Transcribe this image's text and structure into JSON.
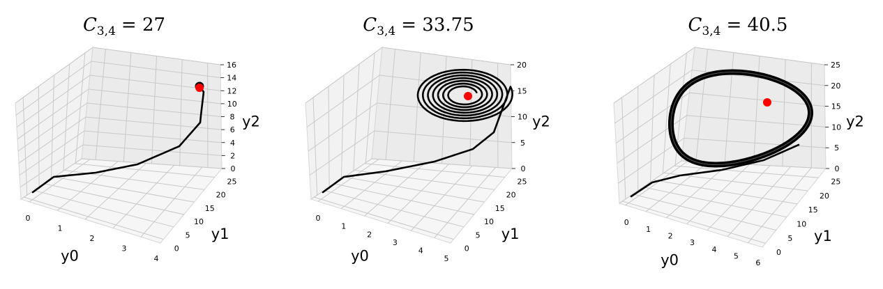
{
  "chart_data": [
    {
      "type": "line3d",
      "title": {
        "var": "C",
        "sub": "3,4",
        "eq": "= 27"
      },
      "xlabel": "y0",
      "ylabel": "y1",
      "zlabel": "y2",
      "xticks": [
        "0",
        "1",
        "2",
        "3",
        "4"
      ],
      "yticks": [
        "0",
        "5",
        "10",
        "15",
        "20",
        "25"
      ],
      "zticks": [
        "0",
        "2",
        "4",
        "6",
        "8",
        "10",
        "12",
        "14",
        "16"
      ],
      "trajectory_color": "#000000",
      "equilibrium_color": "#ff0000",
      "trajectory_kind": "converges to fixed point",
      "equilibrium": {
        "y0": 4.3,
        "y1": 25,
        "y2": 14.6
      }
    },
    {
      "type": "line3d",
      "title": {
        "var": "C",
        "sub": "3,4",
        "eq": "= 33.75"
      },
      "xlabel": "y0",
      "ylabel": "y1",
      "zlabel": "y2",
      "xticks": [
        "0",
        "1",
        "2",
        "3",
        "4",
        "5"
      ],
      "yticks": [
        "0",
        "5",
        "10",
        "15",
        "20",
        "25"
      ],
      "zticks": [
        "0",
        "5",
        "10",
        "15",
        "20"
      ],
      "trajectory_color": "#000000",
      "equilibrium_color": "#ff0000",
      "trajectory_kind": "spiral",
      "equilibrium": {
        "y0": 4.3,
        "y1": 25,
        "y2": 18
      }
    },
    {
      "type": "line3d",
      "title": {
        "var": "C",
        "sub": "3,4",
        "eq": "= 40.5"
      },
      "xlabel": "y0",
      "ylabel": "y1",
      "zlabel": "y2",
      "xticks": [
        "0",
        "1",
        "2",
        "3",
        "4",
        "5",
        "6"
      ],
      "yticks": [
        "0",
        "5",
        "10",
        "15",
        "20",
        "25"
      ],
      "zticks": [
        "0",
        "5",
        "10",
        "15",
        "20",
        "25"
      ],
      "trajectory_color": "#000000",
      "equilibrium_color": "#ff0000",
      "trajectory_kind": "limit cycle",
      "equilibrium": {
        "y0": 4.5,
        "y1": 25,
        "y2": 20
      }
    }
  ]
}
